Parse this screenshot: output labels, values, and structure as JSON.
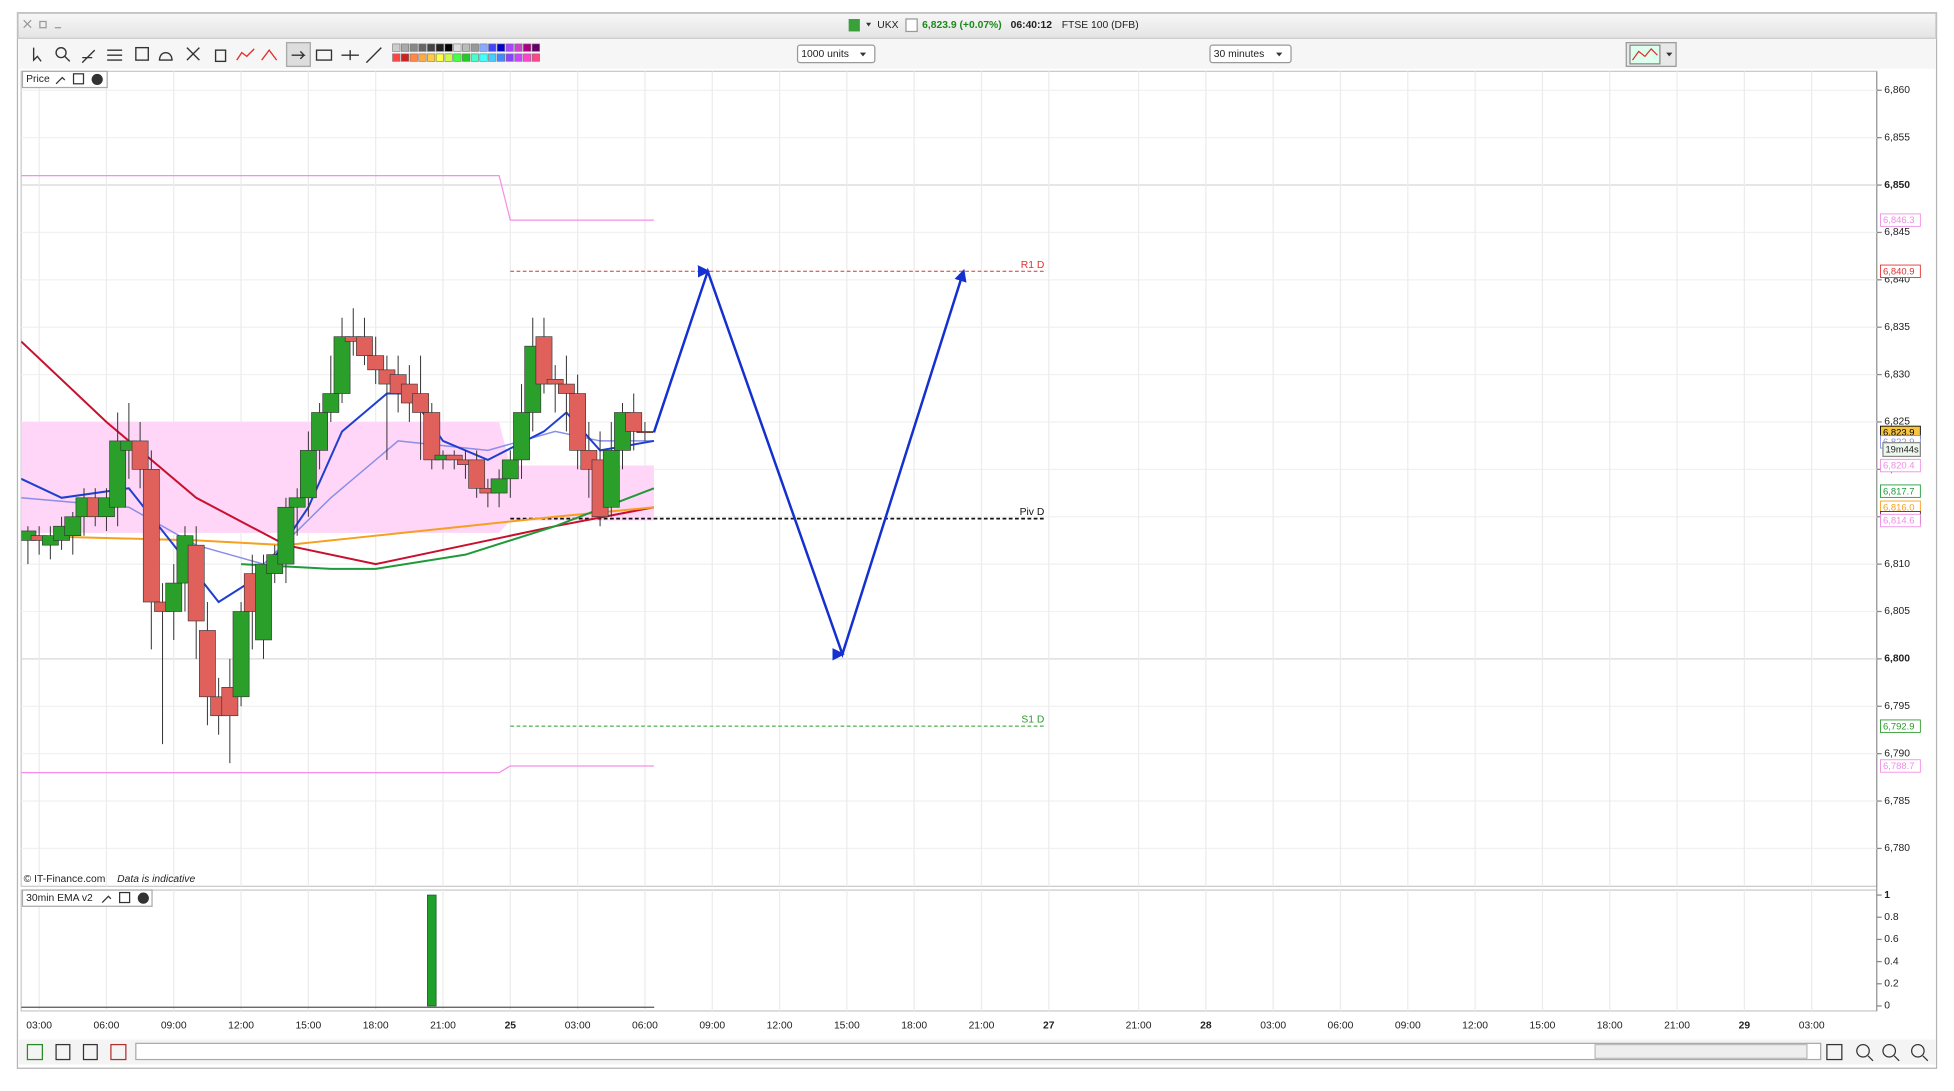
{
  "ui": {
    "title_bar": {
      "symbol": "UKX",
      "quote": "6,823.9 (+0.07%)",
      "time": "06:40:12",
      "name": "FTSE 100 (DFB)"
    },
    "toolbar": {
      "units": "1000 units",
      "interval": "30 minutes"
    },
    "footer": {
      "copyright": "© IT-Finance.com",
      "note": "Data is indicative"
    },
    "countdown": "19m44s"
  },
  "chart_data": [
    {
      "type": "candlestick",
      "title": "Price",
      "x": [
        2.5,
        3,
        3.5,
        4,
        4.5,
        5,
        5.5,
        6,
        6.5,
        7,
        7.5,
        8,
        8.5,
        9,
        9.5,
        10,
        10.5,
        11,
        11.5,
        12,
        12.5,
        13,
        13.5,
        14,
        14.5,
        15,
        15.5,
        16,
        16.5,
        17,
        17.5,
        18,
        18.5,
        19,
        19.5,
        20,
        20.5,
        21,
        21.5,
        22,
        22.5,
        23,
        23.5,
        24,
        24.5,
        25,
        25.5,
        26,
        26.5,
        27,
        27.5,
        28,
        28.5,
        29,
        29.5,
        30
      ],
      "open": [
        6812.5,
        6813,
        6812,
        6812.5,
        6813,
        6815,
        6817,
        6815,
        6816,
        6822,
        6823,
        6820,
        6806,
        6805,
        6808,
        6812,
        6803,
        6796,
        6797,
        6796,
        6809,
        6802,
        6809,
        6810,
        6816,
        6817,
        6822,
        6826,
        6828,
        6834,
        6834,
        6832,
        6830.5,
        6830,
        6829,
        6828,
        6826,
        6821,
        6821.5,
        6821,
        6821,
        6818,
        6817.5,
        6819,
        6821,
        6826,
        6834,
        6829.5,
        6829,
        6828,
        6822,
        6821,
        6816,
        6822,
        6826,
        6824
      ],
      "high": [
        6814,
        6814,
        6814,
        6815,
        6815.5,
        6818,
        6818,
        6818,
        6826,
        6827,
        6825,
        6822,
        6808,
        6810,
        6814,
        6814,
        6806,
        6798,
        6800,
        6806,
        6811,
        6811,
        6812,
        6817,
        6818,
        6824,
        6827,
        6832,
        6836,
        6837,
        6836,
        6834,
        6832,
        6832,
        6831,
        6832,
        6827,
        6822,
        6822,
        6822,
        6822,
        6819,
        6820,
        6822,
        6829,
        6836,
        6836,
        6831,
        6832,
        6830,
        6825,
        6824,
        6825,
        6827,
        6828,
        6825
      ],
      "low": [
        6810,
        6811,
        6810.5,
        6811.5,
        6811,
        6813,
        6814,
        6813.5,
        6814,
        6819,
        6818,
        6801,
        6791,
        6802,
        6805,
        6800,
        6793,
        6792,
        6789,
        6795,
        6801,
        6800,
        6808,
        6808,
        6813,
        6815,
        6820,
        6825,
        6827,
        6832,
        6831,
        6829,
        6821,
        6826,
        6825,
        6821,
        6820,
        6820,
        6820,
        6819,
        6817,
        6816,
        6816,
        6817,
        6819,
        6824,
        6828,
        6826,
        6824,
        6820,
        6817,
        6814,
        6815,
        6820,
        6822,
        6823
      ],
      "close": [
        6813.5,
        6812.5,
        6813,
        6814,
        6815,
        6817,
        6815,
        6817,
        6823,
        6823,
        6820,
        6806,
        6805,
        6808,
        6813,
        6804,
        6796,
        6794,
        6794,
        6805,
        6805,
        6810,
        6811,
        6816,
        6817,
        6822,
        6826,
        6828,
        6834,
        6833.5,
        6832,
        6830.5,
        6829,
        6828,
        6827,
        6826,
        6821,
        6821.5,
        6821,
        6820.5,
        6818,
        6817.5,
        6819,
        6821,
        6826,
        6833,
        6829,
        6829,
        6828,
        6822,
        6820,
        6815,
        6822,
        6826,
        6824,
        6823.9
      ],
      "up_color": "#2aa02a",
      "down_color": "#e0605c",
      "xlim": [
        2.2,
        84.9
      ],
      "ylim": [
        6776,
        6862
      ],
      "xticks": [
        {
          "value": 3,
          "label": "03:00"
        },
        {
          "value": 6,
          "label": "06:00"
        },
        {
          "value": 9,
          "label": "09:00"
        },
        {
          "value": 12,
          "label": "12:00"
        },
        {
          "value": 15,
          "label": "15:00"
        },
        {
          "value": 18,
          "label": "18:00"
        },
        {
          "value": 21,
          "label": "21:00"
        },
        {
          "value": 24,
          "label": "25"
        },
        {
          "value": 27,
          "label": "03:00"
        },
        {
          "value": 30,
          "label": "06:00"
        },
        {
          "value": 33,
          "label": "09:00"
        },
        {
          "value": 36,
          "label": "12:00"
        },
        {
          "value": 39,
          "label": "15:00"
        },
        {
          "value": 42,
          "label": "18:00"
        },
        {
          "value": 45,
          "label": "21:00"
        },
        {
          "value": 48,
          "label": "27"
        },
        {
          "value": 52,
          "label": "21:00"
        },
        {
          "value": 55,
          "label": "28"
        },
        {
          "value": 58,
          "label": "03:00"
        },
        {
          "value": 61,
          "label": "06:00"
        },
        {
          "value": 64,
          "label": "09:00"
        },
        {
          "value": 67,
          "label": "12:00"
        },
        {
          "value": 70,
          "label": "15:00"
        },
        {
          "value": 73,
          "label": "18:00"
        },
        {
          "value": 76,
          "label": "21:00"
        },
        {
          "value": 79,
          "label": "29"
        },
        {
          "value": 82,
          "label": "03:00"
        }
      ],
      "yticks": [
        {
          "value": 6780,
          "label": "6,780"
        },
        {
          "value": 6785,
          "label": "6,785"
        },
        {
          "value": 6790,
          "label": "6,790"
        },
        {
          "value": 6795,
          "label": "6,795"
        },
        {
          "value": 6800,
          "label": "6,800"
        },
        {
          "value": 6805,
          "label": "6,805"
        },
        {
          "value": 6810,
          "label": "6,810"
        },
        {
          "value": 6815,
          "label": "6,815"
        },
        {
          "value": 6820,
          "label": "6,820"
        },
        {
          "value": 6825,
          "label": "6,825"
        },
        {
          "value": 6830,
          "label": "6,830"
        },
        {
          "value": 6835,
          "label": "6,835"
        },
        {
          "value": 6840,
          "label": "6,840"
        },
        {
          "value": 6845,
          "label": "6,845"
        },
        {
          "value": 6850,
          "label": "6,850"
        },
        {
          "value": 6855,
          "label": "6,855"
        },
        {
          "value": 6860,
          "label": "6,860"
        }
      ],
      "grid": true,
      "bands": [
        {
          "color": "#ffd6f7",
          "x": [
            2.2,
            23.5,
            24,
            30.4
          ],
          "top": [
            6825,
            6825,
            6820.4,
            6820.4
          ],
          "bottom": [
            6813.3,
            6813.3,
            6814.6,
            6814.6
          ]
        }
      ],
      "lines": [
        {
          "color": "#f58ee8",
          "width": 1,
          "x": [
            2.2,
            23.5,
            24,
            30.4
          ],
          "values": [
            6851,
            6851,
            6846.3,
            6846.3
          ]
        },
        {
          "color": "#f58ee8",
          "width": 1,
          "x": [
            2.2,
            23.5,
            24,
            30.4
          ],
          "values": [
            6788,
            6788,
            6788.7,
            6788.7
          ]
        },
        {
          "color": "#c8102e",
          "width": 1.6,
          "x": [
            2.2,
            6,
            10,
            14,
            18,
            22,
            26,
            30.4
          ],
          "values": [
            6833.5,
            6825,
            6817,
            6812,
            6810,
            6812,
            6814,
            6816
          ]
        },
        {
          "color": "#f5a020",
          "width": 1.6,
          "x": [
            2.2,
            10,
            14,
            18,
            22,
            26,
            30.4
          ],
          "values": [
            6813,
            6812.5,
            6812,
            6813,
            6814,
            6815,
            6816
          ]
        },
        {
          "color": "#1f9a3a",
          "width": 1.6,
          "x": [
            12,
            16,
            18,
            22,
            26,
            30.4
          ],
          "values": [
            6810,
            6809.5,
            6809.5,
            6811,
            6814,
            6818
          ]
        },
        {
          "color": "#8a8ee8",
          "width": 1.2,
          "x": [
            2.2,
            7,
            10,
            13,
            16,
            19,
            23,
            26,
            28,
            30.4
          ],
          "values": [
            6817,
            6816,
            6812,
            6810,
            6817,
            6823,
            6822,
            6824,
            6823,
            6823
          ]
        },
        {
          "color": "#1f3fd0",
          "width": 1.6,
          "x": [
            2.2,
            4,
            7,
            9,
            11,
            13,
            15,
            16.5,
            18.5,
            19.5,
            21,
            23,
            25.5,
            26.5,
            28,
            30.4
          ],
          "values": [
            6819,
            6817,
            6818,
            6812,
            6806,
            6809,
            6816,
            6824,
            6828,
            6828,
            6823,
            6821,
            6824,
            6826,
            6822,
            6823
          ]
        }
      ],
      "levels": [
        {
          "label": "R1 D",
          "value": 6840.9,
          "color": "#e03030",
          "x": [
            24,
            47.8
          ]
        },
        {
          "label": "Piv D",
          "value": 6814.8,
          "color": "#111111",
          "x": [
            24,
            47.8
          ]
        },
        {
          "label": "S1 D",
          "value": 6792.9,
          "color": "#2a9a2a",
          "x": [
            24,
            47.8
          ]
        }
      ],
      "forecast": {
        "color": "#1530d0",
        "x": [
          30.4,
          32.8,
          38.8,
          44.2
        ],
        "values": [
          6823.9,
          6840.9,
          6800.5,
          6840.9
        ]
      },
      "price_tags": [
        {
          "value": 6846.3,
          "label": "6,846.3",
          "color": "#f08ce6",
          "background": "#ffffff"
        },
        {
          "value": 6840.9,
          "label": "6,840.9",
          "color": "#e03030",
          "background": "#ffffff"
        },
        {
          "value": 6823.9,
          "label": "6,823.9",
          "color": "#000000",
          "background": "#f5c542"
        },
        {
          "value": 6822.9,
          "label": "6,822.9",
          "color": "#8a8ee8",
          "background": "#ffffff"
        },
        {
          "value": 6820.4,
          "label": "6,820.4",
          "color": "#f08ce6",
          "background": "#ffffff"
        },
        {
          "value": 6817.7,
          "label": "6,817.7",
          "color": "#1f9a3a",
          "background": "#ffffff"
        },
        {
          "value": 6816.0,
          "label": "6,816.0",
          "color": "#f5a020",
          "background": "#ffffff"
        },
        {
          "value": 6814.9,
          "label": "6,814.9",
          "color": "#333333",
          "background": "#ffffff"
        },
        {
          "value": 6814.6,
          "label": "6,814.6",
          "color": "#f08ce6",
          "background": "#ffffff"
        },
        {
          "value": 6792.9,
          "label": "6,792.9",
          "color": "#2a9a2a",
          "background": "#ffffff"
        },
        {
          "value": 6788.7,
          "label": "6,788.7",
          "color": "#f08ce6",
          "background": "#ffffff"
        }
      ]
    },
    {
      "type": "bar",
      "title": "30min EMA v2",
      "x": [
        20.5
      ],
      "values": [
        1
      ],
      "color": "#1fa02b",
      "xlim": [
        2.2,
        84.9
      ],
      "ylim": [
        0,
        1
      ],
      "yticks": [
        0,
        0.2,
        0.4,
        0.6,
        0.8,
        1
      ]
    }
  ]
}
